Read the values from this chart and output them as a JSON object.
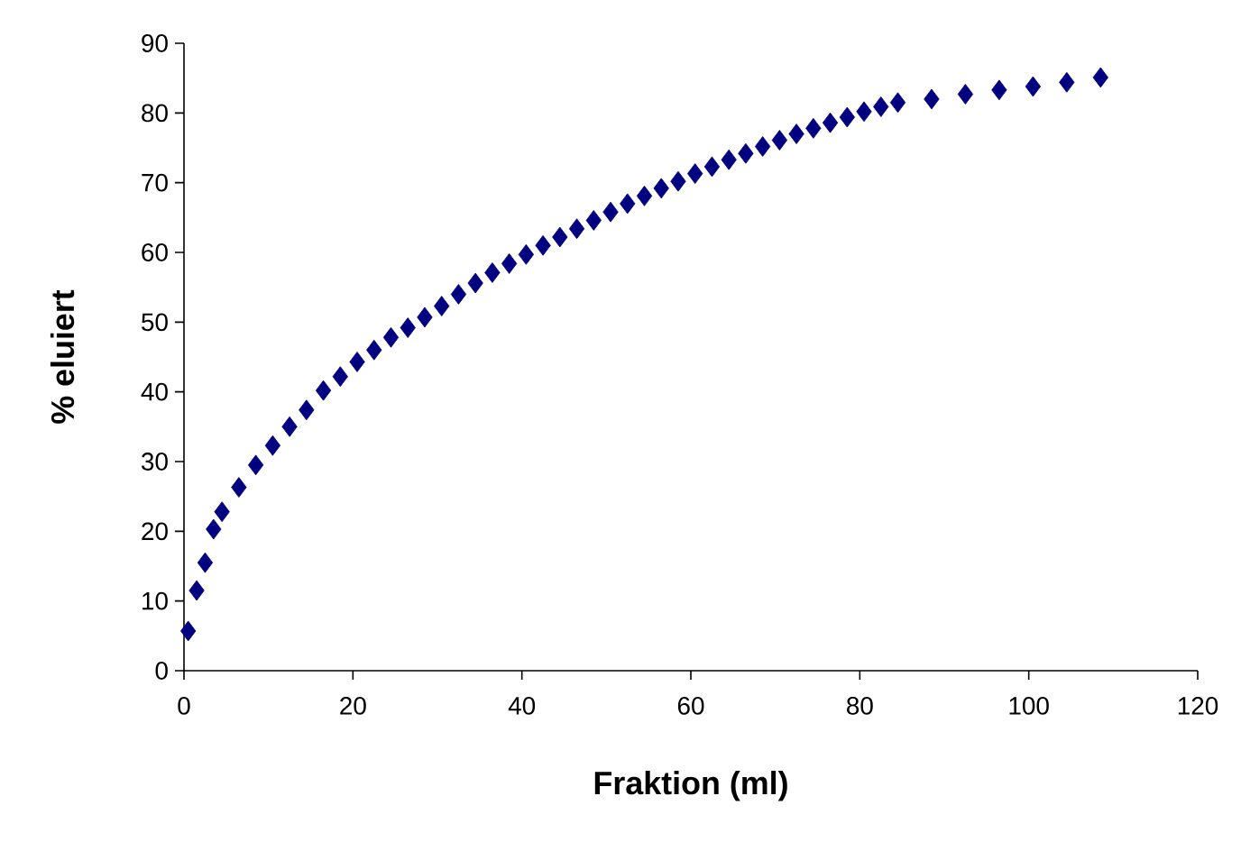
{
  "chart_data": {
    "type": "scatter",
    "xlabel": "Fraktion (ml)",
    "ylabel": "% eluiert",
    "marker": "diamond",
    "grid": false,
    "xlim": [
      0,
      120
    ],
    "ylim": [
      0,
      90
    ],
    "xticks": [
      0,
      20,
      40,
      60,
      80,
      100,
      120
    ],
    "yticks": [
      0,
      10,
      20,
      30,
      40,
      50,
      60,
      70,
      80,
      90
    ],
    "series": [
      {
        "color": "#000080",
        "x": [
          0.5,
          1.5,
          2.5,
          3.5,
          4.5,
          6.5,
          8.5,
          10.5,
          12.5,
          14.5,
          16.5,
          18.5,
          20.5,
          22.5,
          24.5,
          26.5,
          28.5,
          30.5,
          32.5,
          34.5,
          36.5,
          38.5,
          40.5,
          42.5,
          44.5,
          46.5,
          48.5,
          50.5,
          52.5,
          54.5,
          56.5,
          58.5,
          60.5,
          62.5,
          64.5,
          66.5,
          68.5,
          70.5,
          72.5,
          74.5,
          76.5,
          78.5,
          80.5,
          82.5,
          84.5,
          88.5,
          92.5,
          96.5,
          100.5,
          104.5,
          108.5
        ],
        "values": [
          5.7,
          11.5,
          15.5,
          20.3,
          22.8,
          26.3,
          29.5,
          32.3,
          35,
          37.4,
          40.2,
          42.2,
          44.3,
          46,
          47.8,
          49.2,
          50.7,
          52.3,
          54,
          55.6,
          57.1,
          58.4,
          59.7,
          61,
          62.2,
          63.4,
          64.6,
          65.8,
          67,
          68.1,
          69.2,
          70.2,
          71.3,
          72.3,
          73.3,
          74.2,
          75.2,
          76.1,
          77,
          77.8,
          78.6,
          79.4,
          80.2,
          80.9,
          81.5,
          82,
          82.7,
          83.3,
          83.8,
          84.4,
          85.1
        ]
      }
    ]
  }
}
